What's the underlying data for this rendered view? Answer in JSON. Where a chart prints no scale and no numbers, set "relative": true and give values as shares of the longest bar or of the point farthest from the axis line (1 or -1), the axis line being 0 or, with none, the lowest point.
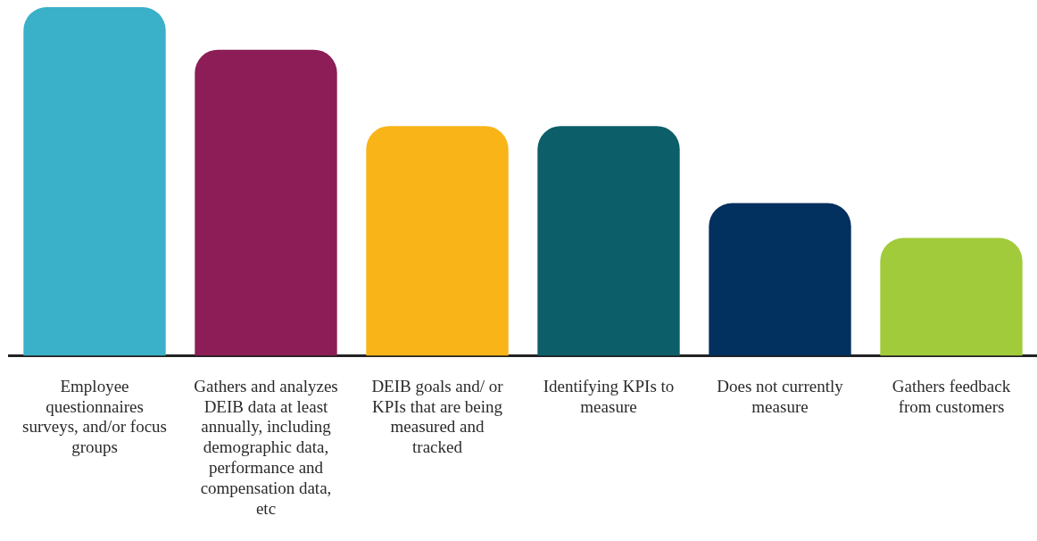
{
  "chart_data": {
    "type": "bar",
    "relative": true,
    "categories": [
      "Employee questionnaires surveys, and/or focus groups",
      "Gathers and analyzes DEIB data at least annually, including demographic data, performance and compensation data, etc",
      "DEIB goals and/ or KPIs that are being measured and tracked",
      "Identifying KPIs to measure",
      "Does not currently measure",
      "Gathers feedback from customers"
    ],
    "values": [
      1,
      0.878,
      0.659,
      0.659,
      0.438,
      0.338
    ],
    "colors": [
      "#3ab0c9",
      "#8c1d56",
      "#f9b418",
      "#0c5e69",
      "#02305f",
      "#a1cb3a"
    ],
    "grid": false,
    "legend": false
  }
}
